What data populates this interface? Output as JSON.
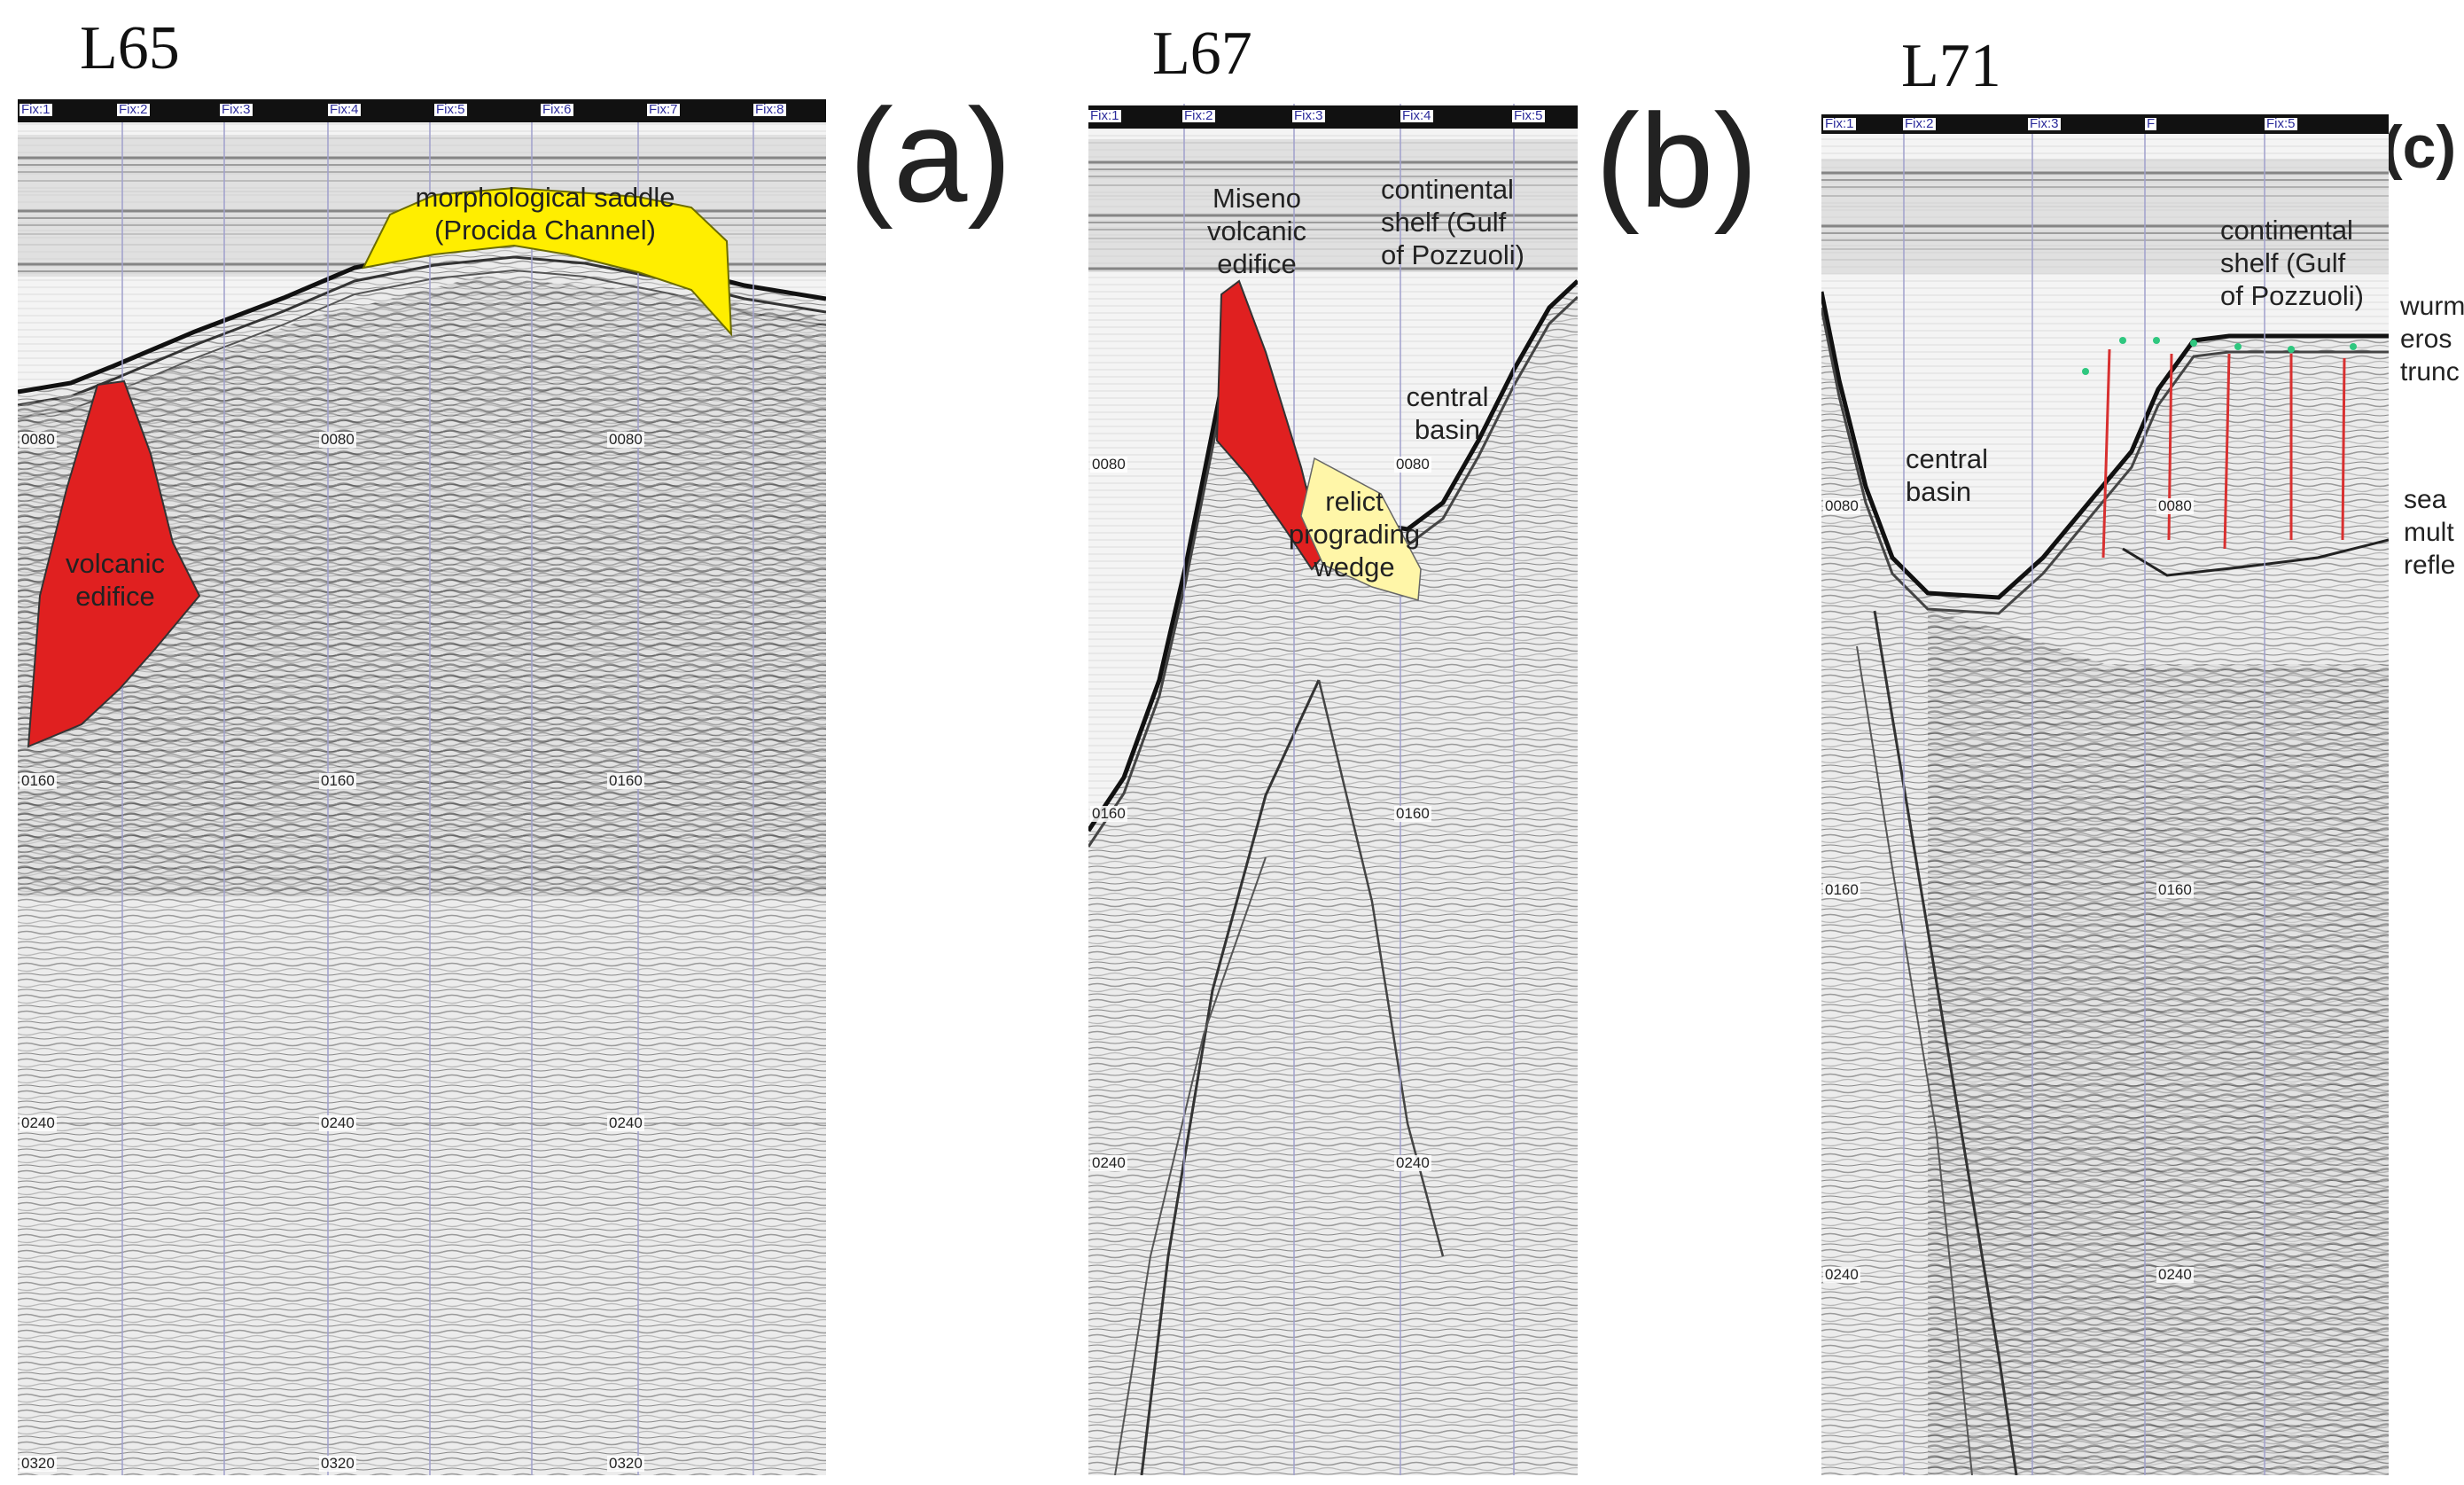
{
  "panels": [
    {
      "id": "a",
      "line_title": "L65",
      "letter": "(a)",
      "fixes": [
        "Fix:1",
        "Fix:2",
        "Fix:3",
        "Fix:4",
        "Fix:5",
        "Fix:6",
        "Fix:7",
        "Fix:8"
      ],
      "depth_labels": [
        "0080",
        "0160",
        "0240",
        "0320"
      ],
      "annotations": {
        "saddle_line1": "morphological saddle",
        "saddle_line2": "(Procida Channel)",
        "volcanic_line1": "volcanic",
        "volcanic_line2": "edifice"
      }
    },
    {
      "id": "b",
      "line_title": "L67",
      "letter": "(b)",
      "fixes": [
        "Fix:1",
        "Fix:2",
        "Fix:3",
        "Fix:4",
        "Fix:5"
      ],
      "depth_labels": [
        "0080",
        "0160",
        "0240"
      ],
      "annotations": {
        "miseno_line1": "Miseno",
        "miseno_line2": "volcanic",
        "miseno_line3": "edifice",
        "shelf_line1": "continental",
        "shelf_line2": "shelf (Gulf",
        "shelf_line3": "of Pozzuoli)",
        "basin_line1": "central",
        "basin_line2": "basin",
        "wedge_line1": "relict",
        "wedge_line2": "prograding",
        "wedge_line3": "wedge"
      }
    },
    {
      "id": "c",
      "line_title": "L71",
      "letter": "(c)",
      "fixes": [
        "Fix:1",
        "Fix:2",
        "Fix:3",
        "F",
        "Fix:5"
      ],
      "depth_labels": [
        "0080",
        "0160",
        "0240"
      ],
      "annotations": {
        "basin_line1": "central",
        "basin_line2": "basin",
        "shelf_line1": "continental",
        "shelf_line2": "shelf (Gulf",
        "shelf_line3": "of Pozzuoli)",
        "side_wurm_1": "wurm",
        "side_wurm_2": "eros",
        "side_wurm_3": "trunc",
        "side_sea_1": "sea",
        "side_sea_2": "mult",
        "side_sea_3": "refle"
      }
    }
  ],
  "colors": {
    "volcanic_fill": "#e02020",
    "saddle_fill": "#ffee00",
    "wedge_fill": "#fff6a8",
    "fault_line": "#d83030",
    "truncation_dot": "#2fc77f"
  }
}
